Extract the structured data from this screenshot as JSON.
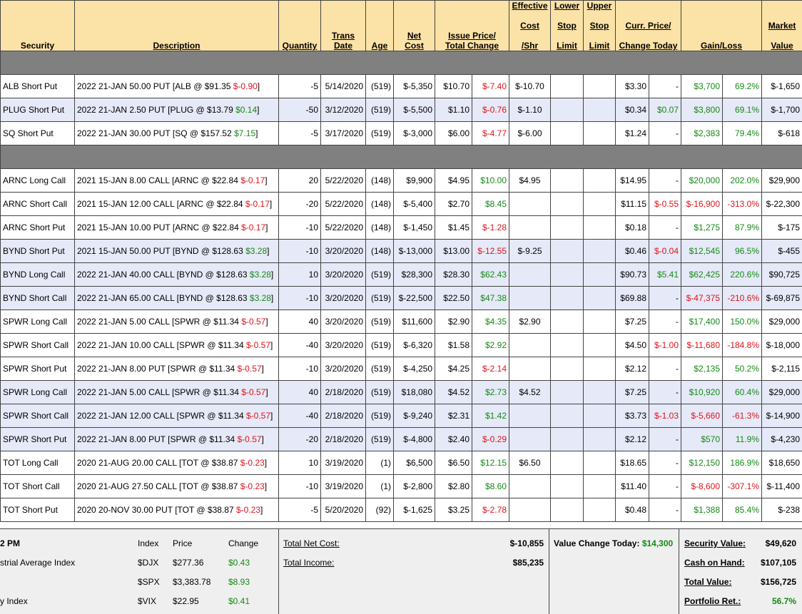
{
  "headers": {
    "security": "Security",
    "description": "Description",
    "quantity": "Quantity",
    "trans_date": [
      "Trans",
      "Date"
    ],
    "age": "Age",
    "net_cost": [
      "Net",
      "Cost"
    ],
    "issue_price": [
      "Issue Price/",
      "Total Change"
    ],
    "eff_cost": [
      "Effective",
      "Cost",
      "/Shr"
    ],
    "lower_stop": [
      "Lower",
      "Stop",
      "Limit"
    ],
    "upper_stop": [
      "Upper",
      "Stop",
      "Limit"
    ],
    "curr_price": [
      "Curr. Price/",
      "Change Today"
    ],
    "gain_loss": "Gain/Loss",
    "market_value": [
      "Market",
      "Value"
    ]
  },
  "colors": {
    "header_bg": "#fbe2a7",
    "separator": "#808080",
    "alt_row": "#e6e9f7",
    "negative": "#e0141b",
    "positive": "#158a15"
  },
  "rows": [
    {
      "type": "sep"
    },
    {
      "sec": "ALB Short Put",
      "desc": "2022 21-JAN 50.00 PUT [ALB @ $91.35 ",
      "dchg": "$-0.90",
      "dcls": "red",
      "qty": "-5",
      "date": "5/14/2020",
      "age": "(519)",
      "cost": "$-5,350",
      "issue": "$10.70",
      "tchg": "$-7.40",
      "tcls": "red",
      "eff": "$-10.70",
      "cur": "$3.30",
      "ctoday": "-",
      "ccls": "",
      "gl": "$3,700",
      "gcls": "green",
      "pct": "69.2%",
      "pcls": "green",
      "mv": "$-1,650",
      "alt": false
    },
    {
      "sec": "PLUG Short Put",
      "desc": "2022 21-JAN 2.50 PUT [PLUG @ $13.79 ",
      "dchg": "$0.14",
      "dcls": "green",
      "qty": "-50",
      "date": "3/12/2020",
      "age": "(519)",
      "cost": "$-5,500",
      "issue": "$1.10",
      "tchg": "$-0.76",
      "tcls": "red",
      "eff": "$-1.10",
      "cur": "$0.34",
      "ctoday": "$0.07",
      "ccls": "green",
      "gl": "$3,800",
      "gcls": "green",
      "pct": "69.1%",
      "pcls": "green",
      "mv": "$-1,700",
      "alt": true
    },
    {
      "sec": "SQ Short Put",
      "desc": "2022 21-JAN 30.00 PUT [SQ @ $157.52 ",
      "dchg": "$7.15",
      "dcls": "green",
      "qty": "-5",
      "date": "3/17/2020",
      "age": "(519)",
      "cost": "$-3,000",
      "issue": "$6.00",
      "tchg": "$-4.77",
      "tcls": "red",
      "eff": "$-6.00",
      "cur": "$1.24",
      "ctoday": "-",
      "ccls": "",
      "gl": "$2,383",
      "gcls": "green",
      "pct": "79.4%",
      "pcls": "green",
      "mv": "$-618",
      "alt": false
    },
    {
      "type": "sep"
    },
    {
      "sec": "ARNC Long Call",
      "desc": "2021 15-JAN 8.00 CALL [ARNC @ $22.84 ",
      "dchg": "$-0.17",
      "dcls": "red",
      "qty": "20",
      "date": "5/22/2020",
      "age": "(148)",
      "cost": "$9,900",
      "issue": "$4.95",
      "tchg": "$10.00",
      "tcls": "green",
      "eff": "$4.95",
      "cur": "$14.95",
      "ctoday": "-",
      "ccls": "",
      "gl": "$20,000",
      "gcls": "green",
      "pct": "202.0%",
      "pcls": "green",
      "mv": "$29,900",
      "alt": false
    },
    {
      "sec": "ARNC Short Call",
      "desc": "2021 15-JAN 12.00 CALL [ARNC @ $22.84 ",
      "dchg": "$-0.17",
      "dcls": "red",
      "qty": "-20",
      "date": "5/22/2020",
      "age": "(148)",
      "cost": "$-5,400",
      "issue": "$2.70",
      "tchg": "$8.45",
      "tcls": "green",
      "eff": "",
      "cur": "$11.15",
      "ctoday": "$-0.55",
      "ccls": "red",
      "gl": "$-16,900",
      "gcls": "red",
      "pct": "-313.0%",
      "pcls": "red",
      "mv": "$-22,300",
      "alt": false
    },
    {
      "sec": "ARNC Short Put",
      "desc": "2021 15-JAN 10.00 PUT [ARNC @ $22.84 ",
      "dchg": "$-0.17",
      "dcls": "red",
      "qty": "-10",
      "date": "5/22/2020",
      "age": "(148)",
      "cost": "$-1,450",
      "issue": "$1.45",
      "tchg": "$-1.28",
      "tcls": "red",
      "eff": "",
      "cur": "$0.18",
      "ctoday": "-",
      "ccls": "",
      "gl": "$1,275",
      "gcls": "green",
      "pct": "87.9%",
      "pcls": "green",
      "mv": "$-175",
      "alt": false
    },
    {
      "sec": "BYND Short Put",
      "desc": "2021 15-JAN 50.00 PUT [BYND @ $128.63 ",
      "dchg": "$3.28",
      "dcls": "green",
      "qty": "-10",
      "date": "3/20/2020",
      "age": "(148)",
      "cost": "$-13,000",
      "issue": "$13.00",
      "tchg": "$-12.55",
      "tcls": "red",
      "eff": "$-9.25",
      "cur": "$0.46",
      "ctoday": "$-0.04",
      "ccls": "red",
      "gl": "$12,545",
      "gcls": "green",
      "pct": "96.5%",
      "pcls": "green",
      "mv": "$-455",
      "alt": true
    },
    {
      "sec": "BYND Long Call",
      "desc": "2022 21-JAN 40.00 CALL [BYND @ $128.63 ",
      "dchg": "$3.28",
      "dcls": "green",
      "qty": "10",
      "date": "3/20/2020",
      "age": "(519)",
      "cost": "$28,300",
      "issue": "$28.30",
      "tchg": "$62.43",
      "tcls": "green",
      "eff": "",
      "cur": "$90.73",
      "ctoday": "$5.41",
      "ccls": "green",
      "gl": "$62,425",
      "gcls": "green",
      "pct": "220.6%",
      "pcls": "green",
      "mv": "$90,725",
      "alt": true
    },
    {
      "sec": "BYND Short Call",
      "desc": "2022 21-JAN 65.00 CALL [BYND @ $128.63 ",
      "dchg": "$3.28",
      "dcls": "green",
      "qty": "-10",
      "date": "3/20/2020",
      "age": "(519)",
      "cost": "$-22,500",
      "issue": "$22.50",
      "tchg": "$47.38",
      "tcls": "green",
      "eff": "",
      "cur": "$69.88",
      "ctoday": "-",
      "ccls": "",
      "gl": "$-47,375",
      "gcls": "red",
      "pct": "-210.6%",
      "pcls": "red",
      "mv": "$-69,875",
      "alt": true
    },
    {
      "sec": "SPWR Long Call",
      "desc": "2022 21-JAN 5.00 CALL [SPWR @ $11.34 ",
      "dchg": "$-0.57",
      "dcls": "red",
      "qty": "40",
      "date": "3/20/2020",
      "age": "(519)",
      "cost": "$11,600",
      "issue": "$2.90",
      "tchg": "$4.35",
      "tcls": "green",
      "eff": "$2.90",
      "cur": "$7.25",
      "ctoday": "-",
      "ccls": "",
      "gl": "$17,400",
      "gcls": "green",
      "pct": "150.0%",
      "pcls": "green",
      "mv": "$29,000",
      "alt": false
    },
    {
      "sec": "SPWR Short Call",
      "desc": "2022 21-JAN 10.00 CALL [SPWR @ $11.34 ",
      "dchg": "$-0.57",
      "dcls": "red",
      "qty": "-40",
      "date": "3/20/2020",
      "age": "(519)",
      "cost": "$-6,320",
      "issue": "$1.58",
      "tchg": "$2.92",
      "tcls": "green",
      "eff": "",
      "cur": "$4.50",
      "ctoday": "$-1.00",
      "ccls": "red",
      "gl": "$-11,680",
      "gcls": "red",
      "pct": "-184.8%",
      "pcls": "red",
      "mv": "$-18,000",
      "alt": false
    },
    {
      "sec": "SPWR Short Put",
      "desc": "2022 21-JAN 8.00 PUT [SPWR @ $11.34 ",
      "dchg": "$-0.57",
      "dcls": "red",
      "qty": "-10",
      "date": "3/20/2020",
      "age": "(519)",
      "cost": "$-4,250",
      "issue": "$4.25",
      "tchg": "$-2.14",
      "tcls": "red",
      "eff": "",
      "cur": "$2.12",
      "ctoday": "-",
      "ccls": "",
      "gl": "$2,135",
      "gcls": "green",
      "pct": "50.2%",
      "pcls": "green",
      "mv": "$-2,115",
      "alt": false
    },
    {
      "sec": "SPWR Long Call",
      "desc": "2022 21-JAN 5.00 CALL [SPWR @ $11.34 ",
      "dchg": "$-0.57",
      "dcls": "red",
      "qty": "40",
      "date": "2/18/2020",
      "age": "(519)",
      "cost": "$18,080",
      "issue": "$4.52",
      "tchg": "$2.73",
      "tcls": "green",
      "eff": "$4.52",
      "cur": "$7.25",
      "ctoday": "-",
      "ccls": "",
      "gl": "$10,920",
      "gcls": "green",
      "pct": "60.4%",
      "pcls": "green",
      "mv": "$29,000",
      "alt": true
    },
    {
      "sec": "SPWR Short Call",
      "desc": "2022 21-JAN 12.00 CALL [SPWR @ $11.34 ",
      "dchg": "$-0.57",
      "dcls": "red",
      "qty": "-40",
      "date": "2/18/2020",
      "age": "(519)",
      "cost": "$-9,240",
      "issue": "$2.31",
      "tchg": "$1.42",
      "tcls": "green",
      "eff": "",
      "cur": "$3.73",
      "ctoday": "$-1.03",
      "ccls": "red",
      "gl": "$-5,660",
      "gcls": "red",
      "pct": "-61.3%",
      "pcls": "red",
      "mv": "$-14,900",
      "alt": true
    },
    {
      "sec": "SPWR Short Put",
      "desc": "2022 21-JAN 8.00 PUT [SPWR @ $11.34 ",
      "dchg": "$-0.57",
      "dcls": "red",
      "qty": "-20",
      "date": "2/18/2020",
      "age": "(519)",
      "cost": "$-4,800",
      "issue": "$2.40",
      "tchg": "$-0.29",
      "tcls": "red",
      "eff": "",
      "cur": "$2.12",
      "ctoday": "-",
      "ccls": "",
      "gl": "$570",
      "gcls": "green",
      "pct": "11.9%",
      "pcls": "green",
      "mv": "$-4,230",
      "alt": true
    },
    {
      "sec": "TOT Long Call",
      "desc": "2020 21-AUG 20.00 CALL [TOT @ $38.87 ",
      "dchg": "$-0.23",
      "dcls": "red",
      "qty": "10",
      "date": "3/19/2020",
      "age": "(1)",
      "cost": "$6,500",
      "issue": "$6.50",
      "tchg": "$12.15",
      "tcls": "green",
      "eff": "$6.50",
      "cur": "$18.65",
      "ctoday": "-",
      "ccls": "",
      "gl": "$12,150",
      "gcls": "green",
      "pct": "186.9%",
      "pcls": "green",
      "mv": "$18,650",
      "alt": false
    },
    {
      "sec": "TOT Short Call",
      "desc": "2020 21-AUG 27.50 CALL [TOT @ $38.87 ",
      "dchg": "$-0.23",
      "dcls": "red",
      "qty": "-10",
      "date": "3/19/2020",
      "age": "(1)",
      "cost": "$-2,800",
      "issue": "$2.80",
      "tchg": "$8.60",
      "tcls": "green",
      "eff": "",
      "cur": "$11.40",
      "ctoday": "-",
      "ccls": "",
      "gl": "$-8,600",
      "gcls": "red",
      "pct": "-307.1%",
      "pcls": "red",
      "mv": "$-11,400",
      "alt": false
    },
    {
      "sec": "TOT Short Put",
      "desc": "2020 20-NOV 30.00 PUT [TOT @ $38.87 ",
      "dchg": "$-0.23",
      "dcls": "red",
      "qty": "-5",
      "date": "5/20/2020",
      "age": "(92)",
      "cost": "$-1,625",
      "issue": "$3.25",
      "tchg": "$-2.78",
      "tcls": "red",
      "eff": "",
      "cur": "$0.48",
      "ctoday": "-",
      "ccls": "",
      "gl": "$1,388",
      "gcls": "green",
      "pct": "85.4%",
      "pcls": "green",
      "mv": "$-238",
      "alt": false
    }
  ],
  "footer": {
    "time_text": "2 PM",
    "idx_headers": {
      "index": "Index",
      "price": "Price",
      "change": "Change"
    },
    "indices": [
      {
        "name": "strial Average Index",
        "sym": "$DJX",
        "price": "$277.36",
        "change": "$0.43"
      },
      {
        "name": "",
        "sym": "$SPX",
        "price": "$3,383.78",
        "change": "$8.93"
      },
      {
        "name": "y Index",
        "sym": "$VIX",
        "price": "$22.95",
        "change": "$0.41"
      }
    ],
    "total_net_cost_label": "Total Net Cost:",
    "total_net_cost": "$-10,855",
    "total_income_label": "Total Income:",
    "total_income": "$85,235",
    "value_change_label": "Value Change Today:",
    "value_change": "$14,300",
    "security_value_label": "Security Value:",
    "security_value": "$49,620",
    "cash_label": "Cash on Hand:",
    "cash": "$107,105",
    "total_value_label": "Total Value:",
    "total_value": "$156,725",
    "portfolio_ret_label": "Portfolio Ret.:",
    "portfolio_ret": "56.7%"
  }
}
